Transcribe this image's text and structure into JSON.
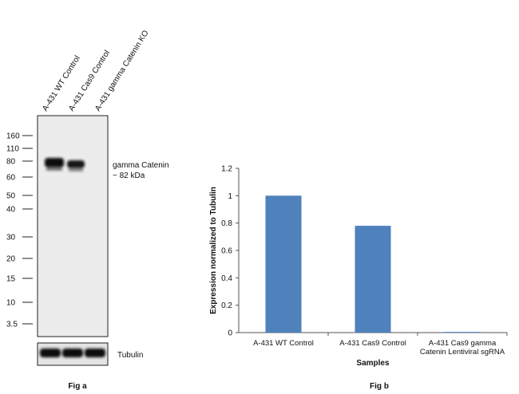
{
  "fig_a": {
    "caption": "Fig a",
    "lane_labels": [
      "A-431 WT Control",
      "A-431 Cas9 Control",
      "A-431 gamma Catenin KO"
    ],
    "markers": [
      "160",
      "110",
      "80",
      "60",
      "50",
      "40",
      "30",
      "20",
      "15",
      "10",
      "3.5"
    ],
    "band_label_line1": "gamma Catenin",
    "band_label_line2": "~ 82 kDa",
    "loading_control_label": "Tubulin"
  },
  "chart_data": {
    "caption": "Fig b",
    "type": "bar",
    "categories": [
      "A-431 WT Control",
      "A-431 Cas9 Control",
      "A-431 Cas9 gamma Catenin Lentiviral sgRNA"
    ],
    "category_lines": [
      [
        "A-431 WT Control"
      ],
      [
        "A-431 Cas9 Control"
      ],
      [
        "A-431 Cas9 gamma",
        "Catenin Lentiviral sgRNA"
      ]
    ],
    "values": [
      1.0,
      0.78,
      0.005
    ],
    "xlabel": "Samples",
    "ylabel": "Expression normalized to Tubulin",
    "ylim": [
      0,
      1.2
    ],
    "yticks": [
      "0",
      "0.2",
      "0.4",
      "0.6",
      "0.8",
      "1",
      "1.2"
    ],
    "grid": false,
    "bar_color": "#4f81bd"
  }
}
